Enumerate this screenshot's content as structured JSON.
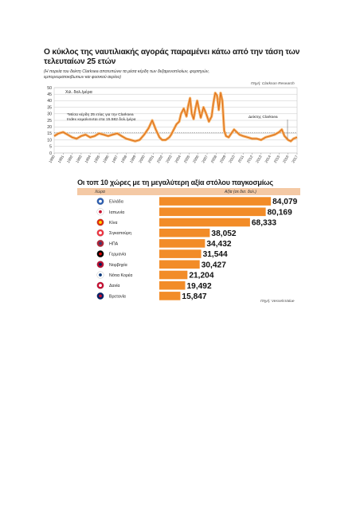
{
  "chart_data": [
    {
      "type": "line",
      "title": "Ο κύκλος της ναυτιλιακής αγοράς παραμένει κάτω από την τάση των τελευταίων 25 ετών",
      "subtitle": "(Η πορεία του δείκτη Clarksea αποτυπώνει τα μέσα κέρδη των δεξαμενοπλοίων, φορτηγών, εμπορευματοκιβωτιων και φυσικού αερίου)",
      "source": "Πηγή: Clarkson Research",
      "ylabel": "Χιλ. δολ./μέρα",
      "annotation_avg": "*Μέσα κέρδη 25 ετίας για την Clarksea Index κυμαίνονται στα 15.582 δολ./μέρα",
      "annotation_index": "Δείκτης Clarksea",
      "ylim": [
        0,
        50
      ],
      "yticks": [
        0,
        5,
        10,
        15,
        20,
        25,
        30,
        35,
        40,
        45,
        50
      ],
      "average": 15.582,
      "xticks": [
        "1990",
        "1991",
        "1992",
        "1993",
        "1994",
        "1995",
        "1996",
        "1997",
        "1998",
        "1999",
        "2000",
        "2001",
        "2002",
        "2003",
        "2004",
        "2005",
        "2006",
        "2007",
        "2008",
        "2009",
        "2010",
        "2011",
        "2012",
        "2013",
        "2014",
        "2015",
        "2016",
        "2017"
      ],
      "x": [
        1990.0,
        1990.5,
        1991.0,
        1991.5,
        1992.0,
        1992.5,
        1993.0,
        1993.5,
        1994.0,
        1994.5,
        1995.0,
        1995.5,
        1996.0,
        1996.5,
        1997.0,
        1997.5,
        1998.0,
        1998.5,
        1999.0,
        1999.5,
        2000.0,
        2000.5,
        2000.9,
        2001.3,
        2001.7,
        2002.0,
        2002.4,
        2002.8,
        2003.0,
        2003.3,
        2003.6,
        2003.9,
        2004.1,
        2004.4,
        2004.7,
        2004.9,
        2005.1,
        2005.3,
        2005.5,
        2005.7,
        2005.9,
        2006.1,
        2006.3,
        2006.6,
        2006.9,
        2007.2,
        2007.5,
        2007.7,
        2007.9,
        2008.1,
        2008.3,
        2008.5,
        2008.7,
        2008.9,
        2009.1,
        2009.4,
        2009.7,
        2010.0,
        2010.3,
        2010.6,
        2011.0,
        2011.5,
        2012.0,
        2012.5,
        2013.0,
        2013.5,
        2014.0,
        2014.5,
        2015.0,
        2015.3,
        2015.6,
        2016.0,
        2016.3,
        2016.6,
        2017.0
      ],
      "values": [
        13,
        15,
        16,
        14,
        12,
        11,
        13,
        14,
        12,
        13,
        15,
        14,
        13,
        14,
        15,
        13,
        11,
        10,
        9,
        10,
        14,
        19,
        25,
        18,
        12,
        10,
        10,
        12,
        14,
        18,
        22,
        24,
        30,
        34,
        28,
        36,
        42,
        30,
        26,
        34,
        40,
        33,
        27,
        35,
        30,
        24,
        28,
        38,
        46,
        44,
        33,
        46,
        40,
        17,
        13,
        12,
        15,
        18,
        16,
        14,
        13,
        12,
        11,
        11,
        10,
        12,
        13,
        14,
        16,
        18,
        13,
        10,
        9,
        11,
        12
      ]
    },
    {
      "type": "bar",
      "title": "Οι τοπ 10 χώρες με τη μεγαλύτερη αξία στόλου παγκοσμίως",
      "header_left": "Χώρα",
      "header_right": "Αξία (σε δισ. δολ.)",
      "source": "Πηγή: VesselsValue",
      "categories": [
        "Ελλάδα",
        "Ιαπωνία",
        "Κίνα",
        "Σιγκαπούρη",
        "ΗΠΑ",
        "Γερμανία",
        "Νορβηγία",
        "Νότια Κορέα",
        "Δανία",
        "Βρετανία"
      ],
      "value_labels": [
        "84,079",
        "80,169",
        "68,333",
        "38,052",
        "34,432",
        "31,544",
        "30,427",
        "21,204",
        "19,492",
        "15,847"
      ],
      "values": [
        84.079,
        80.169,
        68.333,
        38.052,
        34.432,
        31.544,
        30.427,
        21.204,
        19.492,
        15.847
      ],
      "flag_icons": [
        "flag-greece-icon",
        "flag-japan-icon",
        "flag-china-icon",
        "flag-singapore-icon",
        "flag-usa-icon",
        "flag-germany-icon",
        "flag-norway-icon",
        "flag-south-korea-icon",
        "flag-denmark-icon",
        "flag-uk-icon"
      ],
      "bar_color": "#f28c28"
    }
  ]
}
